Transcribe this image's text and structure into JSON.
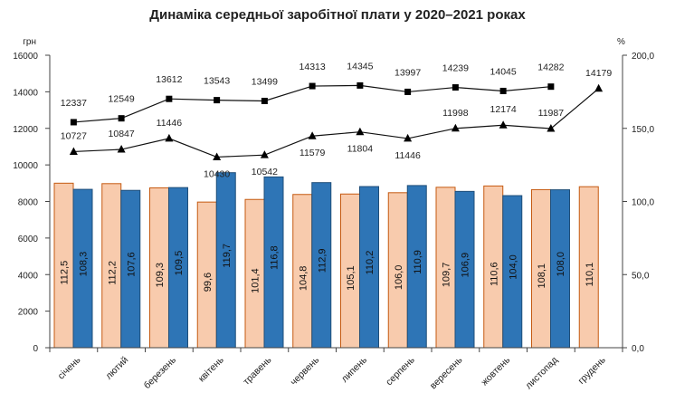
{
  "chart_data": {
    "type": "bar+line",
    "title": "Динаміка середньої заробітної плати у 2020–2021 роках",
    "y_left_unit": "грн",
    "y_right_unit": "%",
    "ylim_left": [
      0,
      16000
    ],
    "ylim_right": [
      0,
      200
    ],
    "yticks_left": [
      "0",
      "2000",
      "4000",
      "6000",
      "8000",
      "10000",
      "12000",
      "14000",
      "16000"
    ],
    "yticks_right": [
      "0,0",
      "50,0",
      "100,0",
      "150,0",
      "200,0"
    ],
    "categories": [
      "січень",
      "лютий",
      "березень",
      "квітень",
      "травень",
      "червень",
      "липень",
      "серпень",
      "вересень",
      "жовтень",
      "листопад",
      "грудень"
    ],
    "bars": [
      {
        "axis": "right",
        "color": "#f8cbad",
        "edge": "#c55a11",
        "values": [
          112.5,
          112.2,
          109.3,
          99.6,
          101.4,
          104.8,
          105.1,
          106.0,
          109.7,
          110.6,
          108.1,
          110.1
        ],
        "labels": [
          "112,5",
          "112,2",
          "109,3",
          "99,6",
          "101,4",
          "104,8",
          "105,1",
          "106,0",
          "109,7",
          "110,6",
          "108,1",
          "110,1"
        ]
      },
      {
        "axis": "right",
        "color": "#2e75b6",
        "edge": "#1f4e79",
        "values": [
          108.3,
          107.6,
          109.5,
          119.7,
          116.8,
          112.9,
          110.2,
          110.9,
          106.9,
          104.0,
          108.0,
          null
        ],
        "labels": [
          "108,3",
          "107,6",
          "109,5",
          "119,7",
          "116,8",
          "112,9",
          "110,2",
          "110,9",
          "106,9",
          "104,0",
          "108,0",
          null
        ]
      }
    ],
    "lines": [
      {
        "axis": "left",
        "marker": "square",
        "values": [
          12337,
          12549,
          13612,
          13543,
          13499,
          14313,
          14345,
          13997,
          14239,
          14045,
          14282,
          null
        ]
      },
      {
        "axis": "left",
        "marker": "triangle",
        "values": [
          10727,
          10847,
          11446,
          10430,
          10542,
          11579,
          11804,
          11446,
          11998,
          12174,
          11987,
          14179
        ]
      }
    ],
    "grid": false,
    "legend": "none"
  }
}
